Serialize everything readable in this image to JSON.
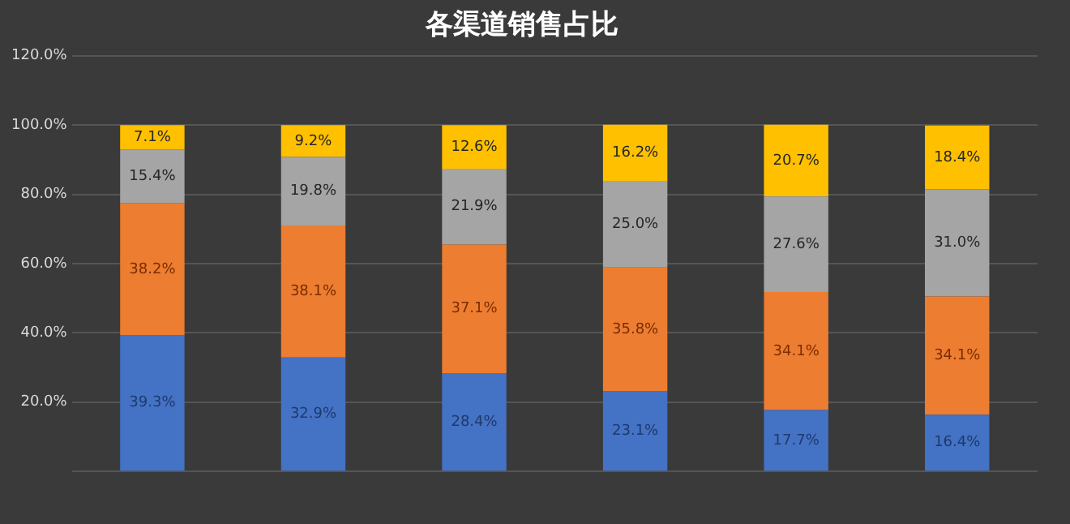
{
  "chart_data": {
    "type": "bar",
    "title": "各渠道销售占比",
    "stacked": true,
    "grid": "y",
    "legend": false,
    "categories": [
      null,
      null,
      null,
      null,
      null,
      null
    ],
    "ylim": [
      0,
      120
    ],
    "yticks": [
      {
        "value": 0,
        "label": null
      },
      {
        "value": 20,
        "label": "20.0%"
      },
      {
        "value": 40,
        "label": "40.0%"
      },
      {
        "value": 60,
        "label": "60.0%"
      },
      {
        "value": 80,
        "label": "80.0%"
      },
      {
        "value": 100,
        "label": "100.0%"
      },
      {
        "value": 120,
        "label": "120.0%"
      }
    ],
    "series": [
      {
        "color": "#4472c4",
        "values": [
          39.3,
          32.9,
          28.4,
          23.1,
          17.7,
          16.4
        ],
        "value_labels": [
          "39.3%",
          "32.9%",
          "28.4%",
          "23.1%",
          "17.7%",
          "16.4%"
        ]
      },
      {
        "color": "#ed7d31",
        "values": [
          38.2,
          38.1,
          37.1,
          35.8,
          34.1,
          34.1
        ],
        "value_labels": [
          "38.2%",
          "38.1%",
          "37.1%",
          "35.8%",
          "34.1%",
          "34.1%"
        ]
      },
      {
        "color": "#a5a5a5",
        "values": [
          15.4,
          19.8,
          21.9,
          25.0,
          27.6,
          31.0
        ],
        "value_labels": [
          "15.4%",
          "19.8%",
          "21.9%",
          "25.0%",
          "27.6%",
          "31.0%"
        ]
      },
      {
        "color": "#ffc000",
        "values": [
          7.1,
          9.2,
          12.6,
          16.2,
          20.7,
          18.4
        ],
        "value_labels": [
          "7.1%",
          "9.2%",
          "12.6%",
          "16.2%",
          "20.7%",
          "18.4%"
        ]
      }
    ]
  }
}
